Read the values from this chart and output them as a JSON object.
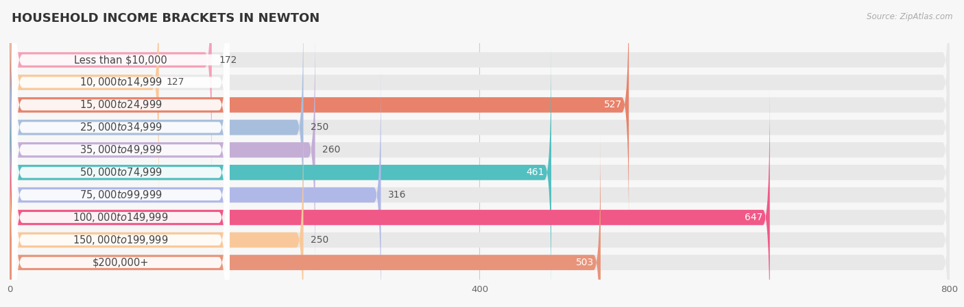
{
  "title": "HOUSEHOLD INCOME BRACKETS IN NEWTON",
  "source": "Source: ZipAtlas.com",
  "categories": [
    "Less than $10,000",
    "$10,000 to $14,999",
    "$15,000 to $24,999",
    "$25,000 to $34,999",
    "$35,000 to $49,999",
    "$50,000 to $74,999",
    "$75,000 to $99,999",
    "$100,000 to $149,999",
    "$150,000 to $199,999",
    "$200,000+"
  ],
  "values": [
    172,
    127,
    527,
    250,
    260,
    461,
    316,
    647,
    250,
    503
  ],
  "bar_colors": [
    "#f5a0b8",
    "#f9c89a",
    "#e8826a",
    "#a8bedd",
    "#c4aed6",
    "#52bfc0",
    "#b0b8e8",
    "#f05888",
    "#f9c89a",
    "#e8947a"
  ],
  "xlim": [
    0,
    800
  ],
  "xticks": [
    0,
    400,
    800
  ],
  "bar_height": 0.68,
  "label_fontsize": 10.5,
  "value_fontsize": 10.0,
  "title_fontsize": 13,
  "background_color": "#f7f7f7",
  "bar_bg_color": "#e8e8e8",
  "value_inside_threshold": 350,
  "white_bg": "#ffffff",
  "grid_color": "#cccccc",
  "label_text_color": "#444444",
  "value_outside_color": "#555555",
  "value_inside_color": "#ffffff"
}
